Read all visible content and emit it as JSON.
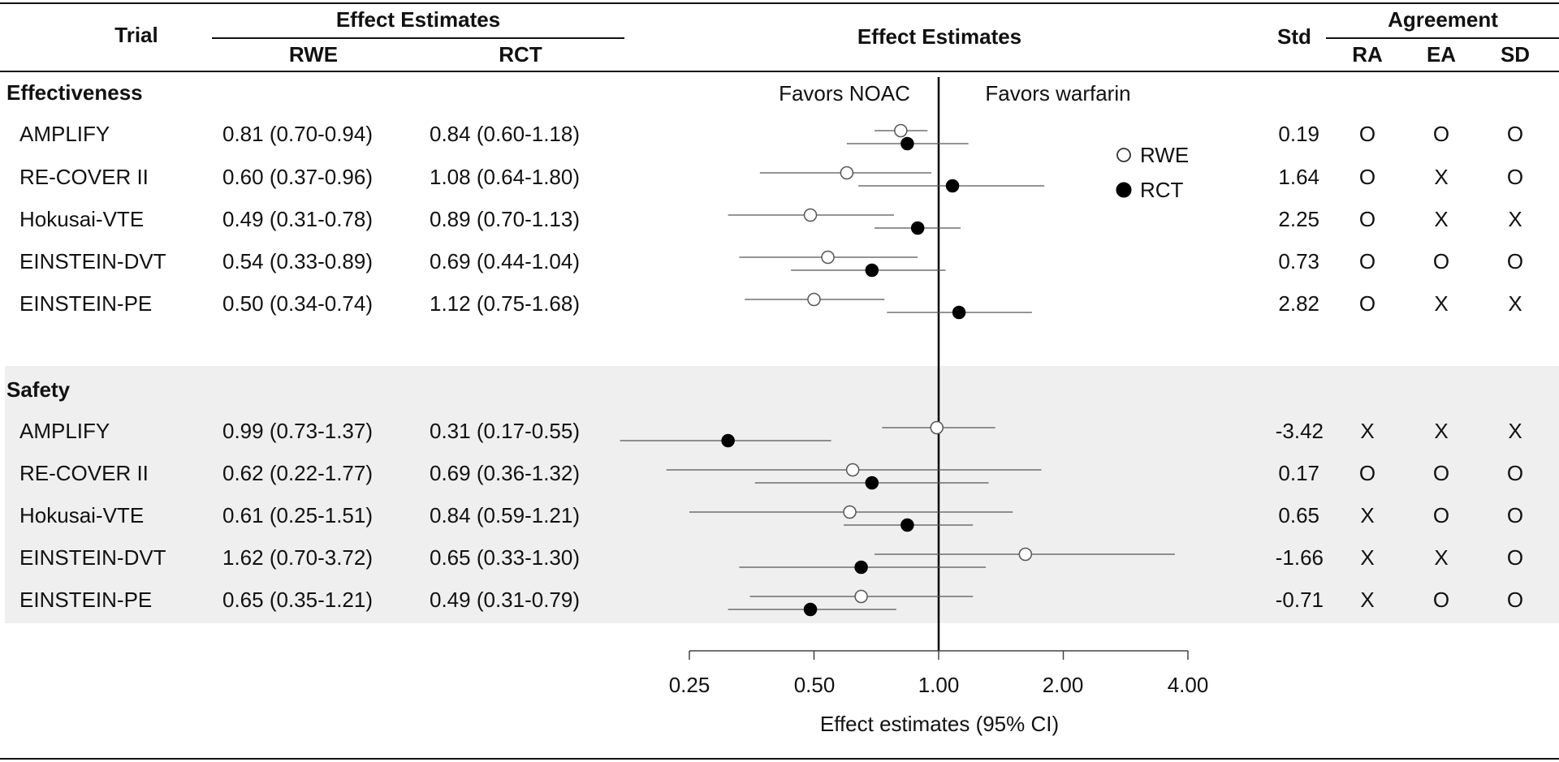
{
  "header": {
    "trial": "Trial",
    "effect_estimates_group": "Effect Estimates",
    "rwe": "RWE",
    "rct": "RCT",
    "plot_title": "Effect Estimates",
    "std": "Std",
    "agreement": "Agreement",
    "ra": "RA",
    "ea": "EA",
    "sd": "SD"
  },
  "sections": [
    {
      "name": "Effectiveness",
      "rows": [
        {
          "trial": "AMPLIFY",
          "rwe": "0.81 (0.70-0.94)",
          "rct": "0.84 (0.60-1.18)",
          "std": "0.19",
          "ra": "O",
          "ea": "O",
          "sd": "O"
        },
        {
          "trial": "RE-COVER II",
          "rwe": "0.60 (0.37-0.96)",
          "rct": "1.08 (0.64-1.80)",
          "std": "1.64",
          "ra": "O",
          "ea": "X",
          "sd": "O"
        },
        {
          "trial": "Hokusai-VTE",
          "rwe": "0.49 (0.31-0.78)",
          "rct": "0.89 (0.70-1.13)",
          "std": "2.25",
          "ra": "O",
          "ea": "X",
          "sd": "X"
        },
        {
          "trial": "EINSTEIN-DVT",
          "rwe": "0.54 (0.33-0.89)",
          "rct": "0.69 (0.44-1.04)",
          "std": "0.73",
          "ra": "O",
          "ea": "O",
          "sd": "O"
        },
        {
          "trial": "EINSTEIN-PE",
          "rwe": "0.50 (0.34-0.74)",
          "rct": "1.12 (0.75-1.68)",
          "std": "2.82",
          "ra": "O",
          "ea": "X",
          "sd": "X"
        }
      ]
    },
    {
      "name": "Safety",
      "rows": [
        {
          "trial": "AMPLIFY",
          "rwe": "0.99 (0.73-1.37)",
          "rct": "0.31 (0.17-0.55)",
          "std": "-3.42",
          "ra": "X",
          "ea": "X",
          "sd": "X"
        },
        {
          "trial": "RE-COVER II",
          "rwe": "0.62 (0.22-1.77)",
          "rct": "0.69 (0.36-1.32)",
          "std": "0.17",
          "ra": "O",
          "ea": "O",
          "sd": "O"
        },
        {
          "trial": "Hokusai-VTE",
          "rwe": "0.61 (0.25-1.51)",
          "rct": "0.84 (0.59-1.21)",
          "std": "0.65",
          "ra": "X",
          "ea": "O",
          "sd": "O"
        },
        {
          "trial": "EINSTEIN-DVT",
          "rwe": "1.62 (0.70-3.72)",
          "rct": "0.65 (0.33-1.30)",
          "std": "-1.66",
          "ra": "X",
          "ea": "X",
          "sd": "O"
        },
        {
          "trial": "EINSTEIN-PE",
          "rwe": "0.65 (0.35-1.21)",
          "rct": "0.49 (0.31-0.79)",
          "std": "-0.71",
          "ra": "X",
          "ea": "O",
          "sd": "O"
        }
      ]
    }
  ],
  "chart_data": {
    "type": "forest",
    "title": "Effect Estimates",
    "xlabel": "Effect estimates (95% CI)",
    "xscale": "log",
    "xlim": [
      0.25,
      4.0
    ],
    "ticks": [
      0.25,
      0.5,
      1.0,
      2.0,
      4.0
    ],
    "tick_labels": [
      "0.25",
      "0.50",
      "1.00",
      "2.00",
      "4.00"
    ],
    "reference_line": 1.0,
    "favors_left": "Favors NOAC",
    "favors_right": "Favors warfarin",
    "legend": [
      {
        "name": "RWE",
        "marker": "open-circle"
      },
      {
        "name": "RCT",
        "marker": "filled-circle"
      }
    ],
    "series": [
      {
        "name": "RWE",
        "points": [
          {
            "est": 0.81,
            "lo": 0.7,
            "hi": 0.94
          },
          {
            "est": 0.6,
            "lo": 0.37,
            "hi": 0.96
          },
          {
            "est": 0.49,
            "lo": 0.31,
            "hi": 0.78
          },
          {
            "est": 0.54,
            "lo": 0.33,
            "hi": 0.89
          },
          {
            "est": 0.5,
            "lo": 0.34,
            "hi": 0.74
          },
          {
            "est": 0.99,
            "lo": 0.73,
            "hi": 1.37
          },
          {
            "est": 0.62,
            "lo": 0.22,
            "hi": 1.77
          },
          {
            "est": 0.61,
            "lo": 0.25,
            "hi": 1.51
          },
          {
            "est": 1.62,
            "lo": 0.7,
            "hi": 3.72
          },
          {
            "est": 0.65,
            "lo": 0.35,
            "hi": 1.21
          }
        ]
      },
      {
        "name": "RCT",
        "points": [
          {
            "est": 0.84,
            "lo": 0.6,
            "hi": 1.18
          },
          {
            "est": 1.08,
            "lo": 0.64,
            "hi": 1.8
          },
          {
            "est": 0.89,
            "lo": 0.7,
            "hi": 1.13
          },
          {
            "est": 0.69,
            "lo": 0.44,
            "hi": 1.04
          },
          {
            "est": 1.12,
            "lo": 0.75,
            "hi": 1.68
          },
          {
            "est": 0.31,
            "lo": 0.17,
            "hi": 0.55
          },
          {
            "est": 0.69,
            "lo": 0.36,
            "hi": 1.32
          },
          {
            "est": 0.84,
            "lo": 0.59,
            "hi": 1.21
          },
          {
            "est": 0.65,
            "lo": 0.33,
            "hi": 1.3
          },
          {
            "est": 0.49,
            "lo": 0.31,
            "hi": 0.79
          }
        ]
      }
    ]
  }
}
